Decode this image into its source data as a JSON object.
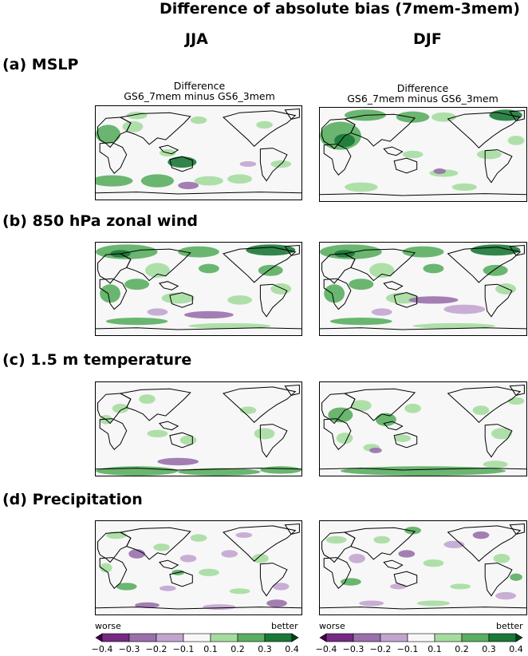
{
  "title": "Difference of absolute bias (7mem-3mem)",
  "columns": [
    "JJA",
    "DJF"
  ],
  "rows": [
    "(a) MSLP",
    "(b) 850 hPa zonal wind",
    "(c) 1.5 m temperature",
    "(d) Precipitation"
  ],
  "panel_subtitle": {
    "line1": "Difference",
    "line2": "GS6_7mem minus GS6_3mem"
  },
  "colorbar": {
    "left_label": "worse",
    "right_label": "better",
    "ticks": [
      "−0.4",
      "−0.3",
      "−0.2",
      "−0.1",
      "0.1",
      "0.2",
      "0.3",
      "0.4"
    ],
    "colors": [
      "#40004b",
      "#762a83",
      "#9970ab",
      "#c2a5cf",
      "#f7f7f7",
      "#a6dba0",
      "#5aae61",
      "#1b7837",
      "#00441b"
    ]
  },
  "chart_data": {
    "type": "heatmap",
    "title": "Difference of absolute bias (7mem-3mem)",
    "panels": [
      {
        "row": "(a) MSLP",
        "season": "JJA"
      },
      {
        "row": "(a) MSLP",
        "season": "DJF"
      },
      {
        "row": "(b) 850 hPa zonal wind",
        "season": "JJA"
      },
      {
        "row": "(b) 850 hPa zonal wind",
        "season": "DJF"
      },
      {
        "row": "(c) 1.5 m temperature",
        "season": "JJA"
      },
      {
        "row": "(c) 1.5 m temperature",
        "season": "DJF"
      },
      {
        "row": "(d) Precipitation",
        "season": "JJA"
      },
      {
        "row": "(d) Precipitation",
        "season": "DJF"
      }
    ],
    "levels": [
      -0.4,
      -0.3,
      -0.2,
      -0.1,
      0.1,
      0.2,
      0.3,
      0.4
    ],
    "colormap": "purple-green (PRGn)"
  }
}
